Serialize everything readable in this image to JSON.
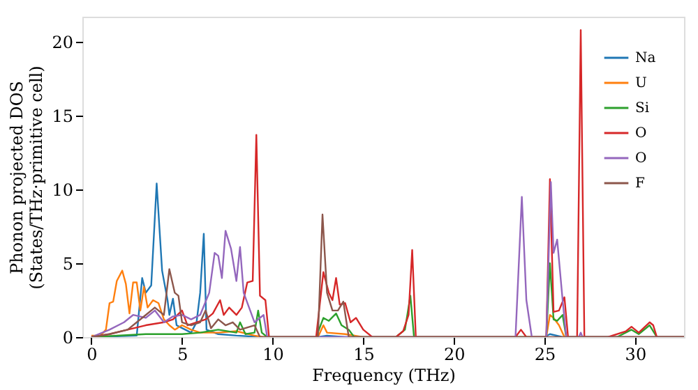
{
  "chart_data": {
    "type": "line",
    "xlabel": "Frequency (THz)",
    "ylabel": "Phonon projected DOS\n(States/THz·primitive cell)",
    "xlim": [
      -0.5,
      32.7
    ],
    "ylim": [
      0,
      21.7
    ],
    "xticks": [
      0,
      5,
      10,
      15,
      20,
      25,
      30
    ],
    "yticks": [
      0,
      5,
      10,
      15,
      20
    ],
    "grid": false,
    "legend": "top right",
    "line_style": "solid",
    "marker": "none",
    "series": [
      {
        "name": "Na",
        "color": "#1f77b4",
        "x": [
          0,
          2.5,
          2.8,
          3.0,
          3.3,
          3.6,
          3.9,
          4.2,
          4.3,
          4.5,
          4.7,
          5.5,
          5.8,
          6.0,
          6.2,
          6.35,
          7,
          8,
          9.5,
          12.5,
          13,
          14,
          25,
          25.3,
          26,
          32.7
        ],
        "values": [
          0,
          0.1,
          4.0,
          3.0,
          3.5,
          10.4,
          4.5,
          2.5,
          1.5,
          2.6,
          0.8,
          0.3,
          1.0,
          3.0,
          7.0,
          0.5,
          0.2,
          0.1,
          0,
          0,
          0.1,
          0,
          0,
          0.2,
          0,
          0
        ]
      },
      {
        "name": "U",
        "color": "#ff7f0e",
        "x": [
          0,
          0.5,
          0.8,
          1.0,
          1.2,
          1.4,
          1.7,
          1.9,
          2.1,
          2.3,
          2.5,
          2.7,
          2.9,
          3.1,
          3.4,
          3.7,
          4.0,
          4.3,
          4.6,
          5,
          5.5,
          6,
          7,
          8,
          9,
          9.5,
          12.5,
          12.8,
          13,
          14,
          15,
          25.1,
          25.3,
          25.5,
          25.8,
          26.1,
          32.7
        ],
        "values": [
          0.1,
          0.1,
          0.5,
          2.3,
          2.4,
          3.8,
          4.5,
          3.6,
          1.6,
          3.7,
          3.7,
          1.8,
          3.4,
          2.0,
          2.5,
          2.3,
          1.2,
          0.8,
          0.5,
          0.8,
          0.5,
          0.3,
          0.3,
          0.4,
          0.1,
          0,
          0,
          0.8,
          0.3,
          0.2,
          0,
          0,
          1.5,
          1.3,
          0.8,
          0,
          0
        ]
      },
      {
        "name": "Si",
        "color": "#2ca02c",
        "x": [
          0,
          3,
          5,
          6,
          7,
          8,
          8.2,
          8.5,
          9.0,
          9.2,
          9.4,
          9.7,
          12.4,
          12.8,
          13.1,
          13.5,
          13.8,
          14.2,
          14.5,
          16.8,
          17.3,
          17.6,
          17.8,
          25.1,
          25.3,
          25.5,
          25.7,
          26.0,
          26.2,
          29,
          29.8,
          30.2,
          30.8,
          31.2,
          32.7
        ],
        "values": [
          0,
          0.2,
          0.2,
          0.3,
          0.5,
          0.3,
          1.0,
          0.2,
          0.3,
          1.8,
          0.3,
          0,
          0,
          1.3,
          1.1,
          1.6,
          0.8,
          0.5,
          0,
          0,
          0.5,
          2.8,
          0,
          0,
          5.0,
          1.2,
          1.1,
          1.5,
          0,
          0,
          0.5,
          0.2,
          0.8,
          0,
          0
        ]
      },
      {
        "name": "O",
        "color": "#d62728",
        "x": [
          0,
          1,
          2,
          3,
          4,
          4.5,
          5,
          5.3,
          5.8,
          6.3,
          6.7,
          7.1,
          7.3,
          7.6,
          8.0,
          8.3,
          8.6,
          8.9,
          9.1,
          9.3,
          9.6,
          9.8,
          12.4,
          12.8,
          13.1,
          13.3,
          13.5,
          13.7,
          14,
          14.3,
          14.6,
          15,
          15.5,
          16.8,
          17.2,
          17.5,
          17.7,
          17.9,
          23.4,
          23.7,
          24,
          25.1,
          25.3,
          25.5,
          25.8,
          26.1,
          26.3,
          26.8,
          27.0,
          27.2,
          28.5,
          29.5,
          29.8,
          30.2,
          30.8,
          31,
          31.2,
          32.7
        ],
        "values": [
          0,
          0.2,
          0.5,
          0.8,
          1.0,
          1.2,
          1.8,
          0.8,
          1.0,
          1.2,
          1.6,
          2.5,
          1.5,
          2.0,
          1.5,
          2.0,
          3.7,
          3.8,
          13.7,
          2.8,
          2.5,
          0,
          0,
          4.4,
          3.0,
          2.5,
          4.0,
          2.2,
          2.3,
          1.0,
          1.3,
          0.5,
          0,
          0,
          0.4,
          1.5,
          5.9,
          0,
          0,
          0.5,
          0,
          0,
          10.7,
          1.7,
          1.8,
          2.7,
          0,
          0,
          20.8,
          0,
          0,
          0.4,
          0.7,
          0.3,
          1.0,
          0.8,
          0,
          0
        ]
      },
      {
        "name": "O",
        "color": "#9467bd",
        "x": [
          0,
          1,
          1.8,
          2.3,
          3,
          3.5,
          4,
          4.5,
          5,
          5.5,
          6,
          6.5,
          6.8,
          7.0,
          7.2,
          7.4,
          7.7,
          8.0,
          8.2,
          8.4,
          8.7,
          9.0,
          9.5,
          9.7,
          23.4,
          23.75,
          24.0,
          24.3,
          25.1,
          25.35,
          25.5,
          25.7,
          26,
          26.2,
          26.9,
          27,
          27.1,
          32.7
        ],
        "values": [
          0,
          0.5,
          1.0,
          1.5,
          1.3,
          1.8,
          1.0,
          1.4,
          1.5,
          1.2,
          1.5,
          3.0,
          5.7,
          5.5,
          4.0,
          7.2,
          6.0,
          3.8,
          6.1,
          3.0,
          2.0,
          1.0,
          1.5,
          0,
          0,
          9.5,
          2.5,
          0,
          0,
          10.5,
          5.7,
          6.6,
          2.5,
          0,
          0,
          0.3,
          0,
          0
        ]
      },
      {
        "name": "F",
        "color": "#8c564b",
        "x": [
          0,
          1,
          2,
          2.5,
          3,
          3.5,
          4,
          4.3,
          4.6,
          4.8,
          5.0,
          5.5,
          6,
          6.3,
          6.6,
          7,
          7.4,
          7.8,
          8.2,
          9,
          9.3,
          12.5,
          12.75,
          13,
          13.3,
          13.6,
          13.9,
          14.2,
          32.7
        ],
        "values": [
          0,
          0.2,
          0.5,
          1.0,
          1.5,
          2.0,
          1.5,
          4.6,
          3.0,
          2.8,
          1.0,
          0.8,
          1.0,
          1.8,
          0.6,
          1.2,
          0.8,
          1.0,
          0.5,
          0.8,
          0,
          0,
          8.3,
          3.0,
          1.8,
          1.8,
          2.4,
          0,
          0
        ]
      }
    ]
  }
}
